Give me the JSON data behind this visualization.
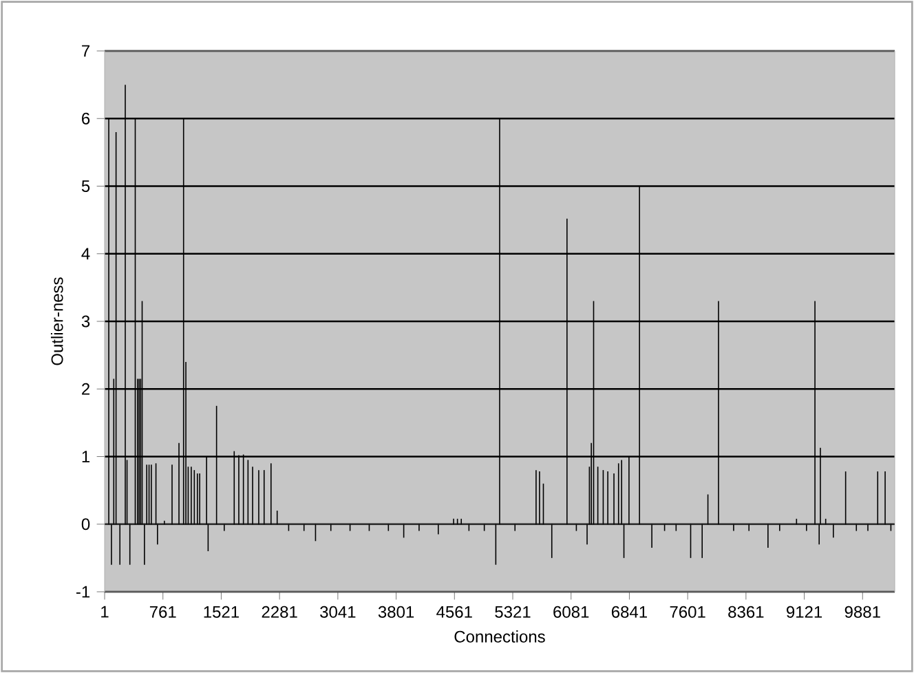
{
  "chart_data": {
    "type": "bar",
    "xlabel": "Connections",
    "ylabel": "Outlier-ness",
    "series": [
      {
        "color": "#000000",
        "x": [
          55,
          90,
          120,
          150,
          200,
          270,
          293,
          330,
          400,
          430,
          450,
          470,
          490,
          520,
          550,
          580,
          610,
          670,
          690,
          780,
          880,
          970,
          1030,
          1060,
          1090,
          1130,
          1170,
          1210,
          1240,
          1330,
          1350,
          1460,
          1560,
          1690,
          1750,
          1810,
          1870,
          1930,
          2010,
          2080,
          2170,
          2250,
          2400,
          2600,
          2750,
          2950,
          3200,
          3450,
          3700,
          3900,
          4100,
          4350,
          4550,
          4600,
          4650,
          4750,
          4950,
          5100,
          5150,
          5350,
          5625,
          5670,
          5720,
          5830,
          6028,
          6150,
          6290,
          6320,
          6345,
          6375,
          6430,
          6500,
          6560,
          6640,
          6700,
          6740,
          6770,
          6836,
          6973,
          7134,
          7300,
          7450,
          7640,
          7790,
          7865,
          8003,
          8200,
          8400,
          8648,
          8800,
          9020,
          9150,
          9260,
          9315,
          9331,
          9400,
          9500,
          9660,
          9800,
          9950,
          10078,
          10175,
          10250
        ],
        "values": [
          6.0,
          -0.6,
          2.15,
          5.8,
          -0.6,
          6.5,
          0.95,
          -0.6,
          6.0,
          2.15,
          2.15,
          2.15,
          3.3,
          -0.6,
          0.88,
          0.88,
          0.88,
          0.9,
          -0.3,
          0.05,
          0.88,
          1.2,
          6.0,
          2.4,
          0.85,
          0.85,
          0.8,
          0.75,
          0.75,
          1.0,
          -0.4,
          1.75,
          -0.1,
          1.08,
          1.02,
          1.03,
          0.95,
          0.85,
          0.8,
          0.8,
          0.9,
          0.2,
          -0.1,
          -0.1,
          -0.25,
          -0.1,
          -0.1,
          -0.1,
          -0.1,
          -0.2,
          -0.1,
          -0.15,
          0.08,
          0.08,
          0.08,
          -0.1,
          -0.1,
          -0.6,
          6.0,
          -0.1,
          0.8,
          0.78,
          0.6,
          -0.5,
          4.52,
          -0.1,
          -0.3,
          0.85,
          1.2,
          3.3,
          0.85,
          0.8,
          0.78,
          0.75,
          0.9,
          0.95,
          -0.5,
          1.0,
          5.0,
          -0.35,
          -0.1,
          -0.1,
          -0.5,
          -0.5,
          0.44,
          3.3,
          -0.1,
          -0.1,
          -0.35,
          -0.1,
          0.08,
          -0.1,
          3.3,
          -0.3,
          1.13,
          0.08,
          -0.2,
          0.78,
          -0.1,
          -0.1,
          0.78,
          0.78,
          -0.1
        ]
      }
    ],
    "xlim": [
      1,
      10300
    ],
    "xticks": [
      1,
      761,
      1521,
      2281,
      3041,
      3801,
      4561,
      5321,
      6081,
      6841,
      7601,
      8361,
      9121,
      9881
    ],
    "ylim": [
      -1,
      7
    ],
    "yticks": [
      -1,
      0,
      1,
      2,
      3,
      4,
      5,
      6,
      7
    ],
    "grid": "y"
  }
}
